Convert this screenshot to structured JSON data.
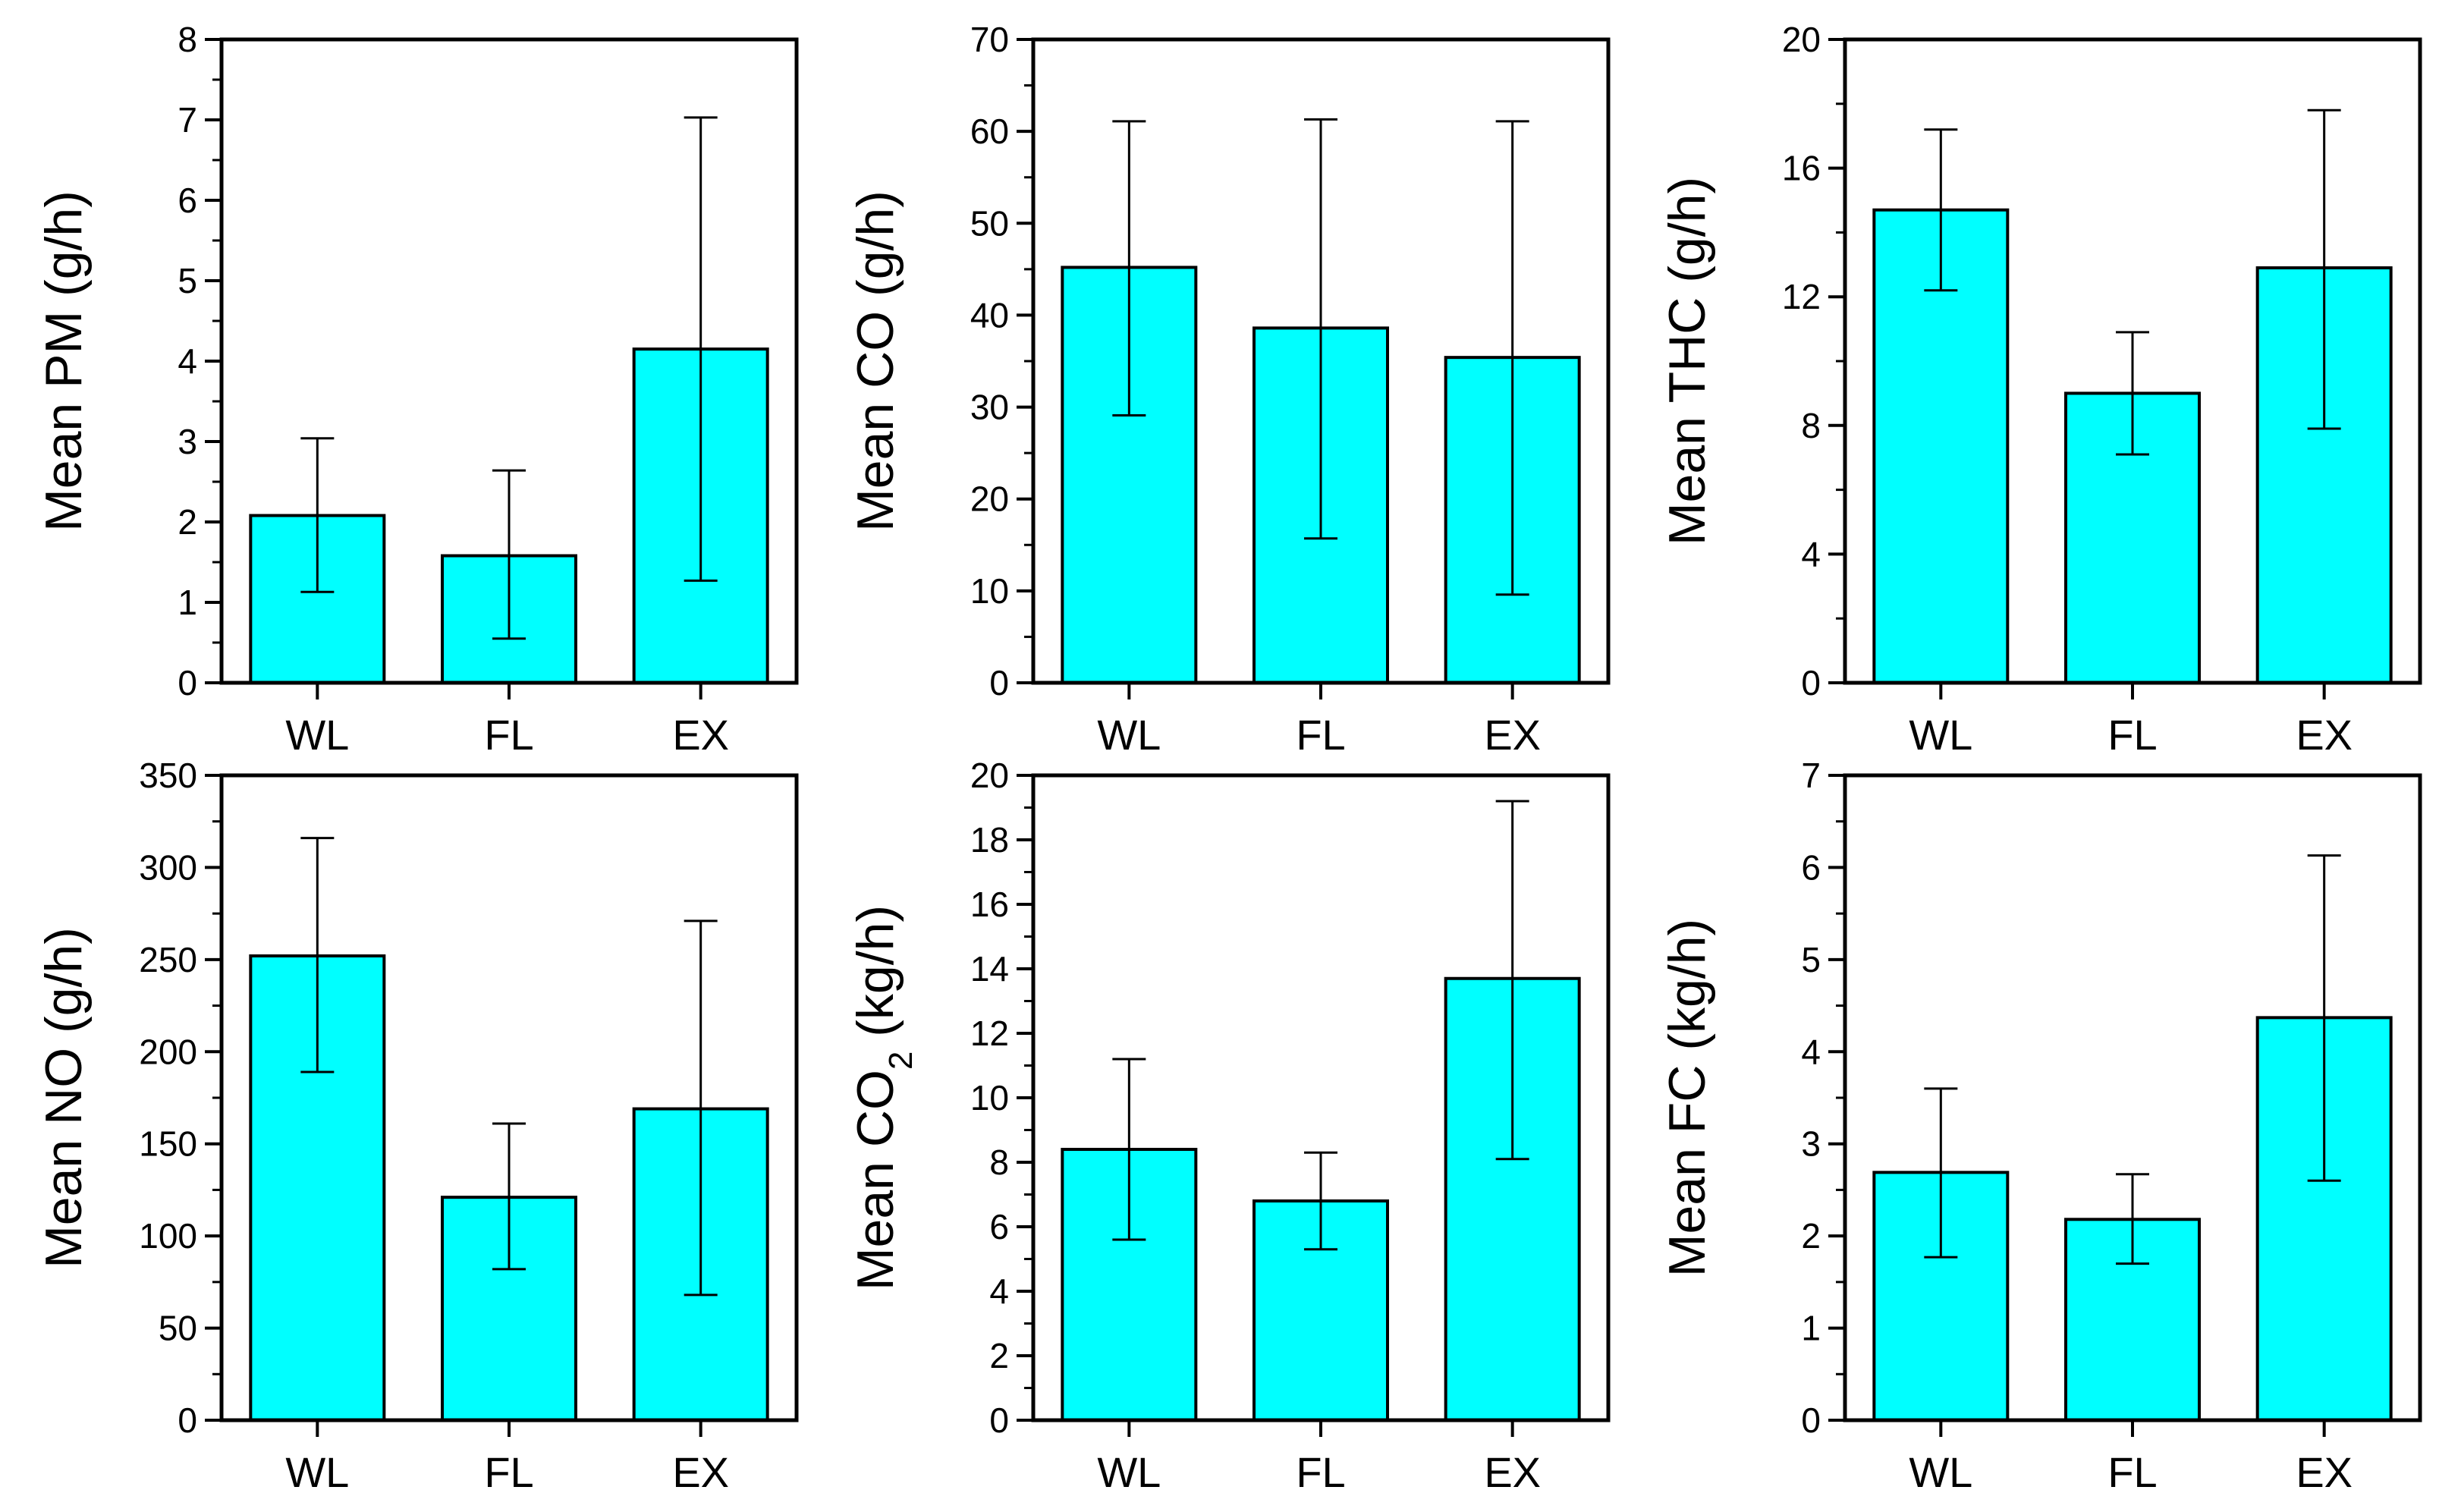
{
  "colors": {
    "bar_fill": "#00FFFF",
    "bar_stroke": "#000000",
    "axis": "#000000"
  },
  "chart_data": [
    {
      "type": "bar",
      "categories": [
        "WL",
        "FL",
        "EX"
      ],
      "values": [
        2.08,
        1.58,
        4.15
      ],
      "error_low": [
        1.13,
        0.55,
        1.27
      ],
      "error_high": [
        3.04,
        2.64,
        7.03
      ],
      "ylabel": "Mean PM (g/h)",
      "ylim": [
        0,
        8
      ],
      "yticks": [
        0,
        1,
        2,
        3,
        4,
        5,
        6,
        7,
        8
      ],
      "ytick_labels": [
        "0",
        "1",
        "2",
        "3",
        "4",
        "5",
        "6",
        "7",
        "8"
      ],
      "minor_per_major": 2
    },
    {
      "type": "bar",
      "categories": [
        "WL",
        "FL",
        "EX"
      ],
      "values": [
        45.2,
        38.6,
        35.4
      ],
      "error_low": [
        29.1,
        15.7,
        9.6
      ],
      "error_high": [
        61.1,
        61.3,
        61.1
      ],
      "ylabel": "Mean CO (g/h)",
      "ylim": [
        0,
        70
      ],
      "yticks": [
        0,
        10,
        20,
        30,
        40,
        50,
        60,
        70
      ],
      "ytick_labels": [
        "0",
        "10",
        "20",
        "30",
        "40",
        "50",
        "60",
        "70"
      ],
      "minor_per_major": 2
    },
    {
      "type": "bar",
      "categories": [
        "WL",
        "FL",
        "EX"
      ],
      "values": [
        14.7,
        9.0,
        12.9
      ],
      "error_low": [
        12.2,
        7.1,
        7.9
      ],
      "error_high": [
        17.2,
        10.9,
        17.8
      ],
      "ylabel": "Mean THC (g/h)",
      "ylim": [
        0,
        20
      ],
      "yticks": [
        0,
        4,
        8,
        12,
        16,
        20
      ],
      "ytick_labels": [
        "0",
        "4",
        "8",
        "12",
        "16",
        "20"
      ],
      "minor_per_major": 2
    },
    {
      "type": "bar",
      "categories": [
        "WL",
        "FL",
        "EX"
      ],
      "values": [
        252,
        121,
        169
      ],
      "error_low": [
        189,
        82,
        68
      ],
      "error_high": [
        316,
        161,
        271
      ],
      "ylabel": "Mean NO (g/h)",
      "ylim": [
        0,
        350
      ],
      "yticks": [
        0,
        50,
        100,
        150,
        200,
        250,
        300,
        350
      ],
      "ytick_labels": [
        "0",
        "50",
        "100",
        "150",
        "200",
        "250",
        "300",
        "350"
      ],
      "minor_per_major": 2
    },
    {
      "type": "bar",
      "categories": [
        "WL",
        "FL",
        "EX"
      ],
      "values": [
        8.4,
        6.8,
        13.7
      ],
      "error_low": [
        5.6,
        5.3,
        8.1
      ],
      "error_high": [
        11.2,
        8.3,
        19.2
      ],
      "ylabel": "Mean CO",
      "ylabel_sub": "2",
      "ylabel_after": " (kg/h)",
      "ylim": [
        0,
        20
      ],
      "yticks": [
        0,
        2,
        4,
        6,
        8,
        10,
        12,
        14,
        16,
        18,
        20
      ],
      "ytick_labels": [
        "0",
        "2",
        "4",
        "6",
        "8",
        "10",
        "12",
        "14",
        "16",
        "18",
        "20"
      ],
      "minor_per_major": 2
    },
    {
      "type": "bar",
      "categories": [
        "WL",
        "FL",
        "EX"
      ],
      "values": [
        2.69,
        2.18,
        4.37
      ],
      "error_low": [
        1.77,
        1.7,
        2.6
      ],
      "error_high": [
        3.6,
        2.67,
        6.13
      ],
      "ylabel": "Mean FC (kg/h)",
      "ylim": [
        0,
        7
      ],
      "yticks": [
        0,
        1,
        2,
        3,
        4,
        5,
        6,
        7
      ],
      "ytick_labels": [
        "0",
        "1",
        "2",
        "3",
        "4",
        "5",
        "6",
        "7"
      ],
      "minor_per_major": 2
    }
  ]
}
